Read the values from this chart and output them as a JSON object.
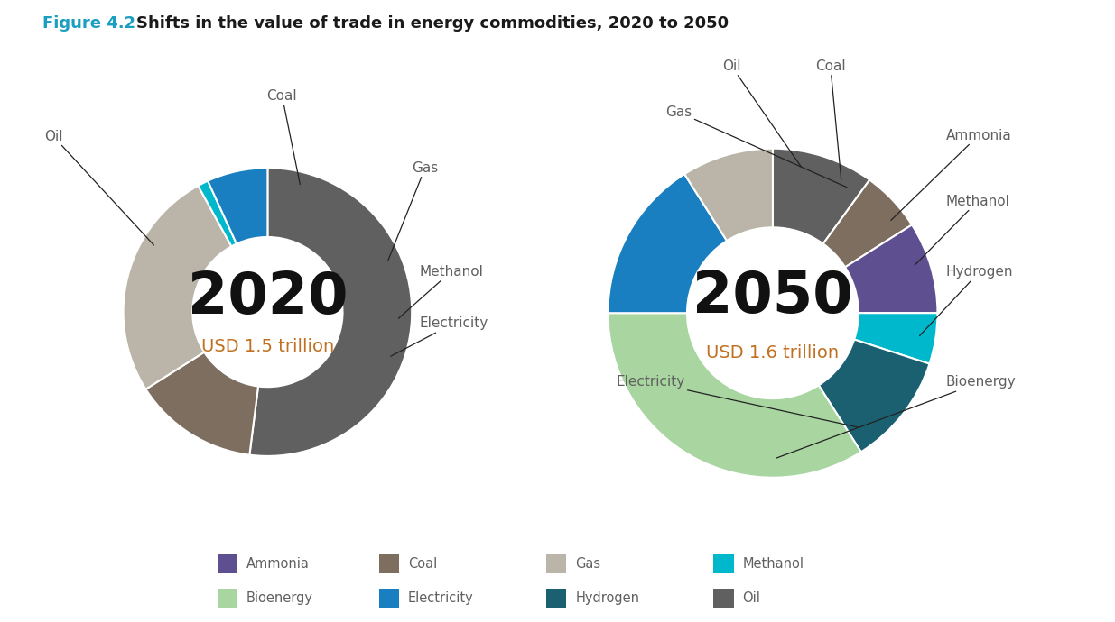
{
  "title_prefix": "Figure 4.2",
  "title_text": "Shifts in the value of trade in energy commodities, 2020 to 2050",
  "title_color_prefix": "#1a9fc0",
  "title_color_text": "#1a1a1a",
  "colors": {
    "Oil": "#606060",
    "Coal": "#7d6e60",
    "Gas": "#bab5a8",
    "Methanol": "#00b8cc",
    "Electricity": "#1a7fc0",
    "Ammonia": "#5e5090",
    "Hydrogen": "#1a6070",
    "Bioenergy": "#a8d5a0"
  },
  "chart2020": {
    "year": "2020",
    "subtitle": "USD 1.5 trillion",
    "slices": [
      {
        "label": "Oil",
        "value": 52
      },
      {
        "label": "Coal",
        "value": 14
      },
      {
        "label": "Gas",
        "value": 26
      },
      {
        "label": "Methanol",
        "value": 1.2
      },
      {
        "label": "Electricity",
        "value": 6.8
      }
    ]
  },
  "chart2050": {
    "year": "2050",
    "subtitle": "USD 1.6 trillion",
    "slices": [
      {
        "label": "Oil",
        "value": 10
      },
      {
        "label": "Coal",
        "value": 6
      },
      {
        "label": "Ammonia",
        "value": 9
      },
      {
        "label": "Methanol",
        "value": 5
      },
      {
        "label": "Hydrogen",
        "value": 11
      },
      {
        "label": "Bioenergy",
        "value": 34
      },
      {
        "label": "Electricity",
        "value": 16
      },
      {
        "label": "Gas",
        "value": 9
      }
    ]
  },
  "legend_items": [
    {
      "label": "Ammonia",
      "color": "#5e5090"
    },
    {
      "label": "Coal",
      "color": "#7d6e60"
    },
    {
      "label": "Gas",
      "color": "#bab5a8"
    },
    {
      "label": "Methanol",
      "color": "#00b8cc"
    },
    {
      "label": "Bioenergy",
      "color": "#a8d5a0"
    },
    {
      "label": "Electricity",
      "color": "#1a7fc0"
    },
    {
      "label": "Hydrogen",
      "color": "#1a6070"
    },
    {
      "label": "Oil",
      "color": "#606060"
    }
  ],
  "background_color": "#ffffff",
  "annotation_color": "#606060",
  "year_fontsize": 46,
  "subtitle_fontsize": 14,
  "label_fontsize": 11,
  "title_fontsize": 13
}
